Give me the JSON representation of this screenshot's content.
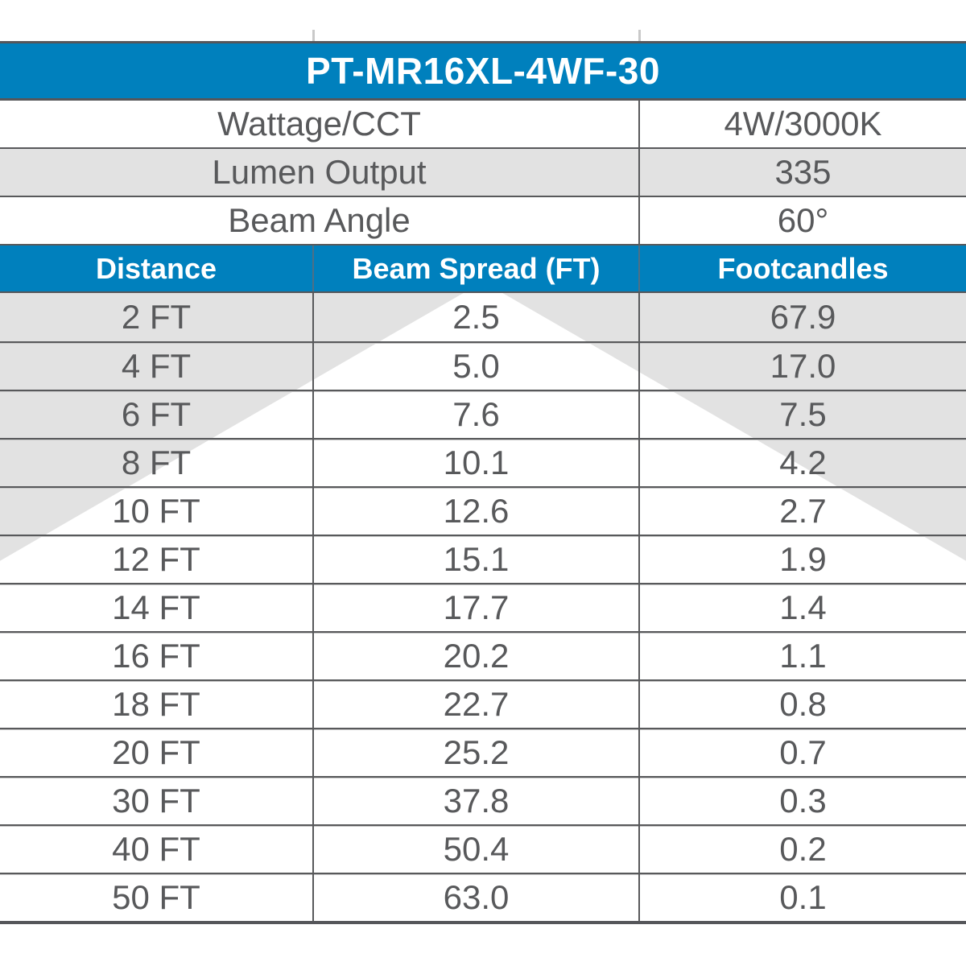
{
  "colors": {
    "brand_blue": "#0080BD",
    "row_gray": "#E2E2E2",
    "grid_line_gray": "#58595B",
    "text_gray": "#58595B",
    "header_text": "#FFFFFF"
  },
  "header": {
    "model": "PT-MR16XL-4WF-30"
  },
  "specs": {
    "rows": [
      {
        "label": "Wattage/CCT",
        "value": "4W/3000K"
      },
      {
        "label": "Lumen Output",
        "value": "335"
      },
      {
        "label": "Beam Angle",
        "value": "60°"
      }
    ]
  },
  "photometrics": {
    "columns": [
      "Distance",
      "Beam Spread (FT)",
      "Footcandles"
    ],
    "beam_cone_graphic": "white-triangle-60-degree",
    "rows": [
      {
        "distance": "2 FT",
        "beam_spread": "2.5",
        "footcandles": "67.9"
      },
      {
        "distance": "4 FT",
        "beam_spread": "5.0",
        "footcandles": "17.0"
      },
      {
        "distance": "6 FT",
        "beam_spread": "7.6",
        "footcandles": "7.5"
      },
      {
        "distance": "8 FT",
        "beam_spread": "10.1",
        "footcandles": "4.2"
      },
      {
        "distance": "10 FT",
        "beam_spread": "12.6",
        "footcandles": "2.7"
      },
      {
        "distance": "12 FT",
        "beam_spread": "15.1",
        "footcandles": "1.9"
      },
      {
        "distance": "14 FT",
        "beam_spread": "17.7",
        "footcandles": "1.4"
      },
      {
        "distance": "16 FT",
        "beam_spread": "20.2",
        "footcandles": "1.1"
      },
      {
        "distance": "18 FT",
        "beam_spread": "22.7",
        "footcandles": "0.8"
      },
      {
        "distance": "20 FT",
        "beam_spread": "25.2",
        "footcandles": "0.7"
      },
      {
        "distance": "30 FT",
        "beam_spread": "37.8",
        "footcandles": "0.3"
      },
      {
        "distance": "40 FT",
        "beam_spread": "50.4",
        "footcandles": "0.2"
      },
      {
        "distance": "50 FT",
        "beam_spread": "63.0",
        "footcandles": "0.1"
      }
    ]
  }
}
